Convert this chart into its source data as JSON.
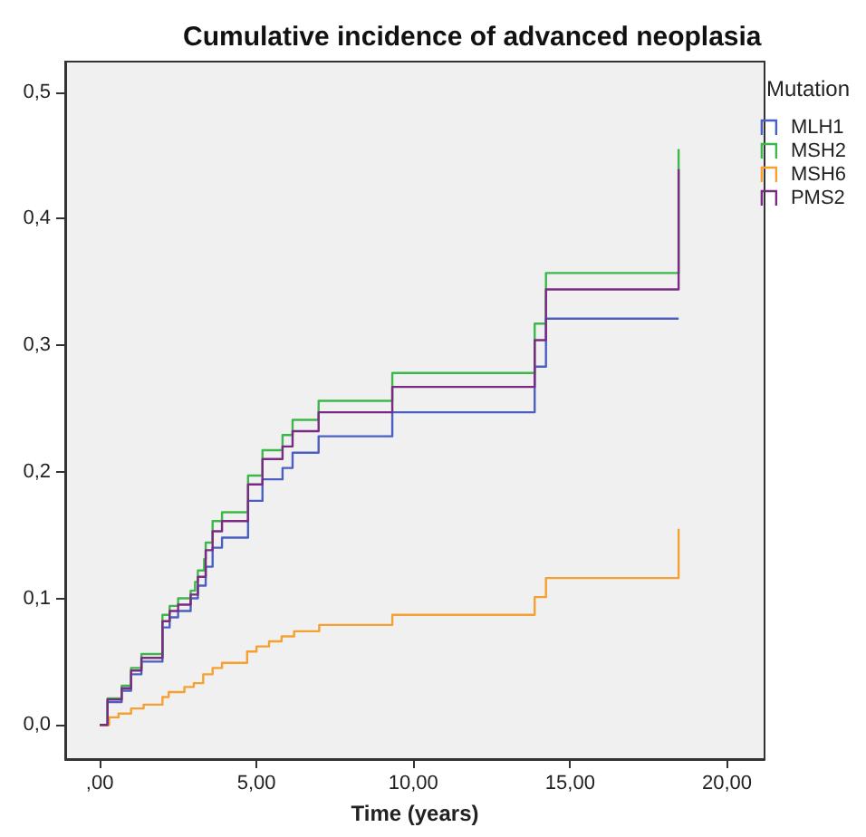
{
  "chart_data": {
    "type": "step",
    "title": "Cumulative incidence of advanced neoplasia",
    "xlabel": "Time (years)",
    "legend_title": "Mutation",
    "legend": "right",
    "grid": false,
    "line_style": "solid",
    "marker": "none",
    "xlim": [
      -1.1,
      21.2
    ],
    "ylim": [
      -0.027,
      0.524
    ],
    "xticks": [
      {
        "value": 0,
        "label": ",00"
      },
      {
        "value": 5,
        "label": "5,00"
      },
      {
        "value": 10,
        "label": "10,00"
      },
      {
        "value": 15,
        "label": "15,00"
      },
      {
        "value": 20,
        "label": "20,00"
      }
    ],
    "yticks": [
      {
        "value": 0,
        "label": "0,0"
      },
      {
        "value": 0.1,
        "label": "0,1"
      },
      {
        "value": 0.2,
        "label": "0,2"
      },
      {
        "value": 0.3,
        "label": "0,3"
      },
      {
        "value": 0.4,
        "label": "0,4"
      },
      {
        "value": 0.5,
        "label": "0,5"
      }
    ],
    "series": [
      {
        "name": "MLH1",
        "color": "#4a5fc1",
        "x": [
          0,
          0.25,
          0.7,
          1.0,
          1.33,
          2.0,
          2.23,
          2.5,
          2.9,
          3.13,
          3.38,
          3.6,
          3.9,
          4.73,
          5.19,
          5.83,
          6.15,
          6.98,
          9.33,
          13.87,
          14.23,
          18.46
        ],
        "values": [
          0,
          0.018,
          0.027,
          0.04,
          0.05,
          0.077,
          0.085,
          0.09,
          0.1,
          0.11,
          0.125,
          0.14,
          0.148,
          0.177,
          0.194,
          0.203,
          0.215,
          0.228,
          0.247,
          0.283,
          0.321,
          0.321
        ]
      },
      {
        "name": "MSH2",
        "color": "#3cb84a",
        "x": [
          0,
          0.25,
          0.7,
          1.0,
          1.33,
          2.0,
          2.23,
          2.5,
          2.9,
          3.04,
          3.13,
          3.33,
          3.38,
          3.6,
          3.9,
          4.73,
          5.19,
          5.83,
          6.15,
          6.98,
          9.33,
          13.87,
          14.23,
          18.46,
          18.46
        ],
        "values": [
          0,
          0.021,
          0.031,
          0.045,
          0.056,
          0.087,
          0.094,
          0.1,
          0.106,
          0.113,
          0.122,
          0.131,
          0.144,
          0.161,
          0.168,
          0.197,
          0.217,
          0.229,
          0.241,
          0.256,
          0.278,
          0.317,
          0.357,
          0.357,
          0.455
        ]
      },
      {
        "name": "MSH6",
        "color": "#f5a030",
        "x": [
          0,
          0.3,
          0.6,
          1.0,
          1.4,
          2.0,
          2.2,
          2.7,
          3.0,
          3.3,
          3.6,
          3.9,
          4.7,
          5.0,
          5.4,
          5.8,
          6.2,
          7.0,
          9.33,
          13.87,
          14.23,
          18.46,
          18.46
        ],
        "values": [
          0,
          0.006,
          0.009,
          0.013,
          0.016,
          0.022,
          0.026,
          0.03,
          0.033,
          0.04,
          0.045,
          0.049,
          0.058,
          0.062,
          0.066,
          0.07,
          0.074,
          0.079,
          0.087,
          0.101,
          0.116,
          0.116,
          0.155
        ]
      },
      {
        "name": "PMS2",
        "color": "#7a2a82",
        "x": [
          0,
          0.25,
          0.7,
          1.0,
          1.33,
          2.0,
          2.23,
          2.5,
          2.9,
          3.13,
          3.38,
          3.6,
          3.9,
          4.73,
          5.19,
          5.83,
          6.15,
          6.98,
          9.33,
          13.87,
          14.23,
          18.46,
          18.46
        ],
        "values": [
          0,
          0.02,
          0.029,
          0.043,
          0.053,
          0.082,
          0.09,
          0.095,
          0.103,
          0.117,
          0.138,
          0.153,
          0.161,
          0.19,
          0.21,
          0.22,
          0.232,
          0.247,
          0.267,
          0.304,
          0.344,
          0.344,
          0.439
        ]
      }
    ]
  }
}
